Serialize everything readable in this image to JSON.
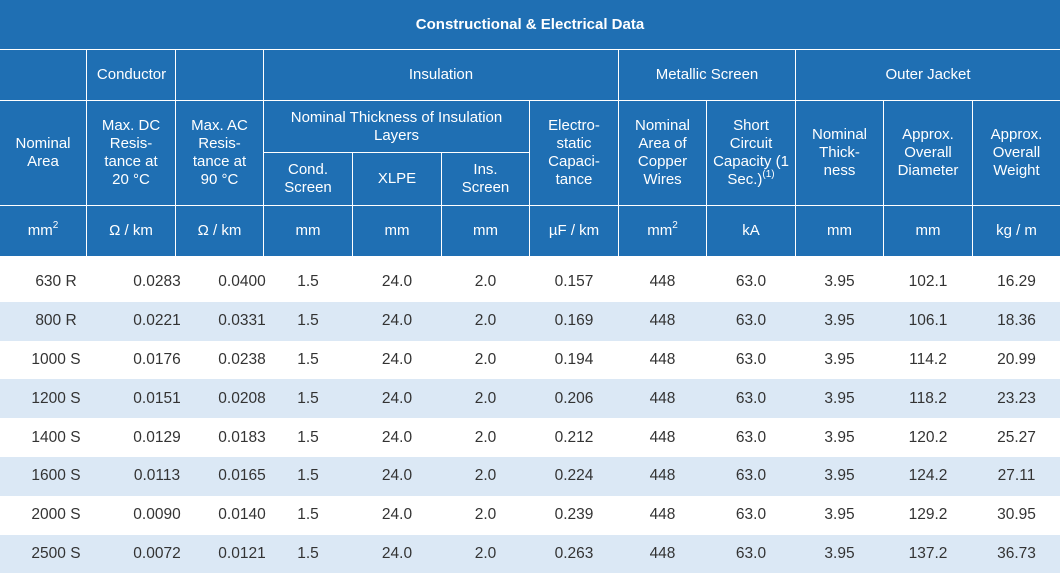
{
  "title": "Constructional & Electrical Data",
  "groups": {
    "conductor": "Conductor",
    "insulation": "Insulation",
    "metallic_screen": "Metallic Screen",
    "outer_jacket": "Outer Jacket",
    "nominal_thickness": "Nominal Thickness of Insulation Layers"
  },
  "headers": {
    "nominal_area": "Nominal Area",
    "max_dc": "Max. DC Resis-tance at 20 °C",
    "max_ac": "Max. AC Resis-tance at 90 °C",
    "cond_screen": "Cond. Screen",
    "xlpe": "XLPE",
    "ins_screen": "Ins. Screen",
    "capacitance": "Electro-static Capaci-tance",
    "copper_area": "Nominal Area of Copper Wires",
    "short_circuit": "Short Circuit Capacity (1 Sec.)",
    "short_circuit_note": "(1)",
    "jacket_thickness": "Nominal Thick-ness",
    "overall_diameter": "Approx. Overall Diameter",
    "overall_weight": "Approx. Overall Weight"
  },
  "units": {
    "mm2_base": "mm",
    "mm2_exp": "2",
    "ohm_km": "Ω / km",
    "ohm_km_ac": "Ω / km",
    "mm_cond": "mm",
    "mm_xlpe": "mm",
    "mm_ins": "mm",
    "uf_km": "µF / km",
    "copper_base": "mm",
    "copper_exp": "2",
    "ka": "kA",
    "mm_jacket": "mm",
    "mm_diameter": "mm",
    "kg_m": "kg / m"
  },
  "rows": [
    [
      "630 R",
      "0.0283",
      "0.0400",
      "1.5",
      "24.0",
      "2.0",
      "0.157",
      "448",
      "63.0",
      "3.95",
      "102.1",
      "16.29"
    ],
    [
      "800 R",
      "0.0221",
      "0.0331",
      "1.5",
      "24.0",
      "2.0",
      "0.169",
      "448",
      "63.0",
      "3.95",
      "106.1",
      "18.36"
    ],
    [
      "1000 S",
      "0.0176",
      "0.0238",
      "1.5",
      "24.0",
      "2.0",
      "0.194",
      "448",
      "63.0",
      "3.95",
      "114.2",
      "20.99"
    ],
    [
      "1200 S",
      "0.0151",
      "0.0208",
      "1.5",
      "24.0",
      "2.0",
      "0.206",
      "448",
      "63.0",
      "3.95",
      "118.2",
      "23.23"
    ],
    [
      "1400 S",
      "0.0129",
      "0.0183",
      "1.5",
      "24.0",
      "2.0",
      "0.212",
      "448",
      "63.0",
      "3.95",
      "120.2",
      "25.27"
    ],
    [
      "1600 S",
      "0.0113",
      "0.0165",
      "1.5",
      "24.0",
      "2.0",
      "0.224",
      "448",
      "63.0",
      "3.95",
      "124.2",
      "27.11"
    ],
    [
      "2000 S",
      "0.0090",
      "0.0140",
      "1.5",
      "24.0",
      "2.0",
      "0.239",
      "448",
      "63.0",
      "3.95",
      "129.2",
      "30.95"
    ],
    [
      "2500 S",
      "0.0072",
      "0.0121",
      "1.5",
      "24.0",
      "2.0",
      "0.263",
      "448",
      "63.0",
      "3.95",
      "137.2",
      "36.73"
    ]
  ]
}
